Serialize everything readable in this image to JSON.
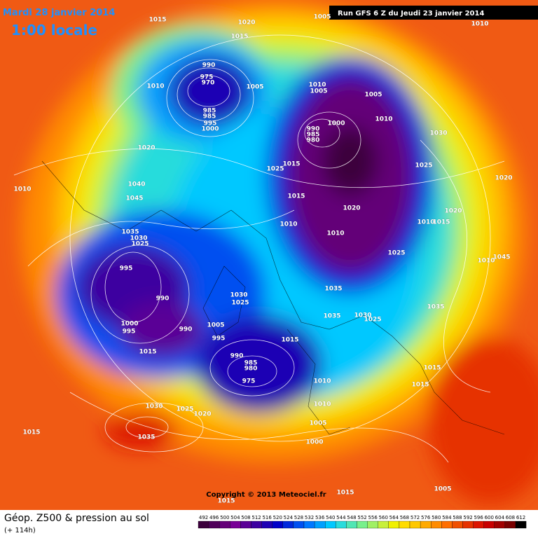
{
  "header": {
    "date": "Mardi 28 janvier 2014",
    "time": "1:00 locale",
    "run": "Run GFS 6 Z du Jeudi 23 janvier 2014"
  },
  "footer": {
    "title": "Géop. Z500 & pression au sol",
    "lead": "(+ 114h)",
    "copyright": "Copyright © 2013 Meteociel.fr"
  },
  "scale": {
    "labels": [
      492,
      496,
      500,
      504,
      508,
      512,
      516,
      520,
      524,
      528,
      532,
      536,
      540,
      544,
      548,
      552,
      556,
      560,
      564,
      568,
      572,
      576,
      580,
      584,
      588,
      592,
      596,
      600,
      604,
      608,
      612
    ],
    "colors": [
      "#3c003c",
      "#50005a",
      "#640078",
      "#780096",
      "#5a0096",
      "#3c00a0",
      "#1e00b4",
      "#0000c8",
      "#0028dc",
      "#0050f0",
      "#0078ff",
      "#00a0ff",
      "#00c8ff",
      "#28dcdc",
      "#50e6b4",
      "#78f08c",
      "#a0f064",
      "#c8f03c",
      "#f0f000",
      "#ffdc00",
      "#ffc800",
      "#ffaa00",
      "#ff8c00",
      "#ff6e00",
      "#f05000",
      "#e63200",
      "#dc1400",
      "#c80000",
      "#a00000",
      "#780000",
      "#000000"
    ]
  },
  "isobars": [
    1015,
    1020,
    1015,
    1005,
    1010,
    990,
    975,
    970,
    1010,
    1005,
    1010,
    1005,
    1005,
    985,
    985,
    995,
    1000,
    1010,
    1000,
    990,
    985,
    980,
    1030,
    1020,
    1025,
    1015,
    1025,
    1010,
    1040,
    1045,
    1015,
    1020,
    1020,
    1020,
    1010,
    1015,
    1010,
    1010,
    1035,
    1030,
    1025,
    1025,
    1045,
    1010,
    995,
    990,
    1035,
    1030,
    1025,
    1035,
    1035,
    1030,
    1025,
    1000,
    995,
    990,
    1005,
    995,
    1015,
    1015,
    990,
    985,
    980,
    975,
    1010,
    1015,
    1015,
    1010,
    1030,
    1025,
    1020,
    1015,
    1035,
    1005,
    1000,
    1015,
    1005,
    1015
  ]
}
